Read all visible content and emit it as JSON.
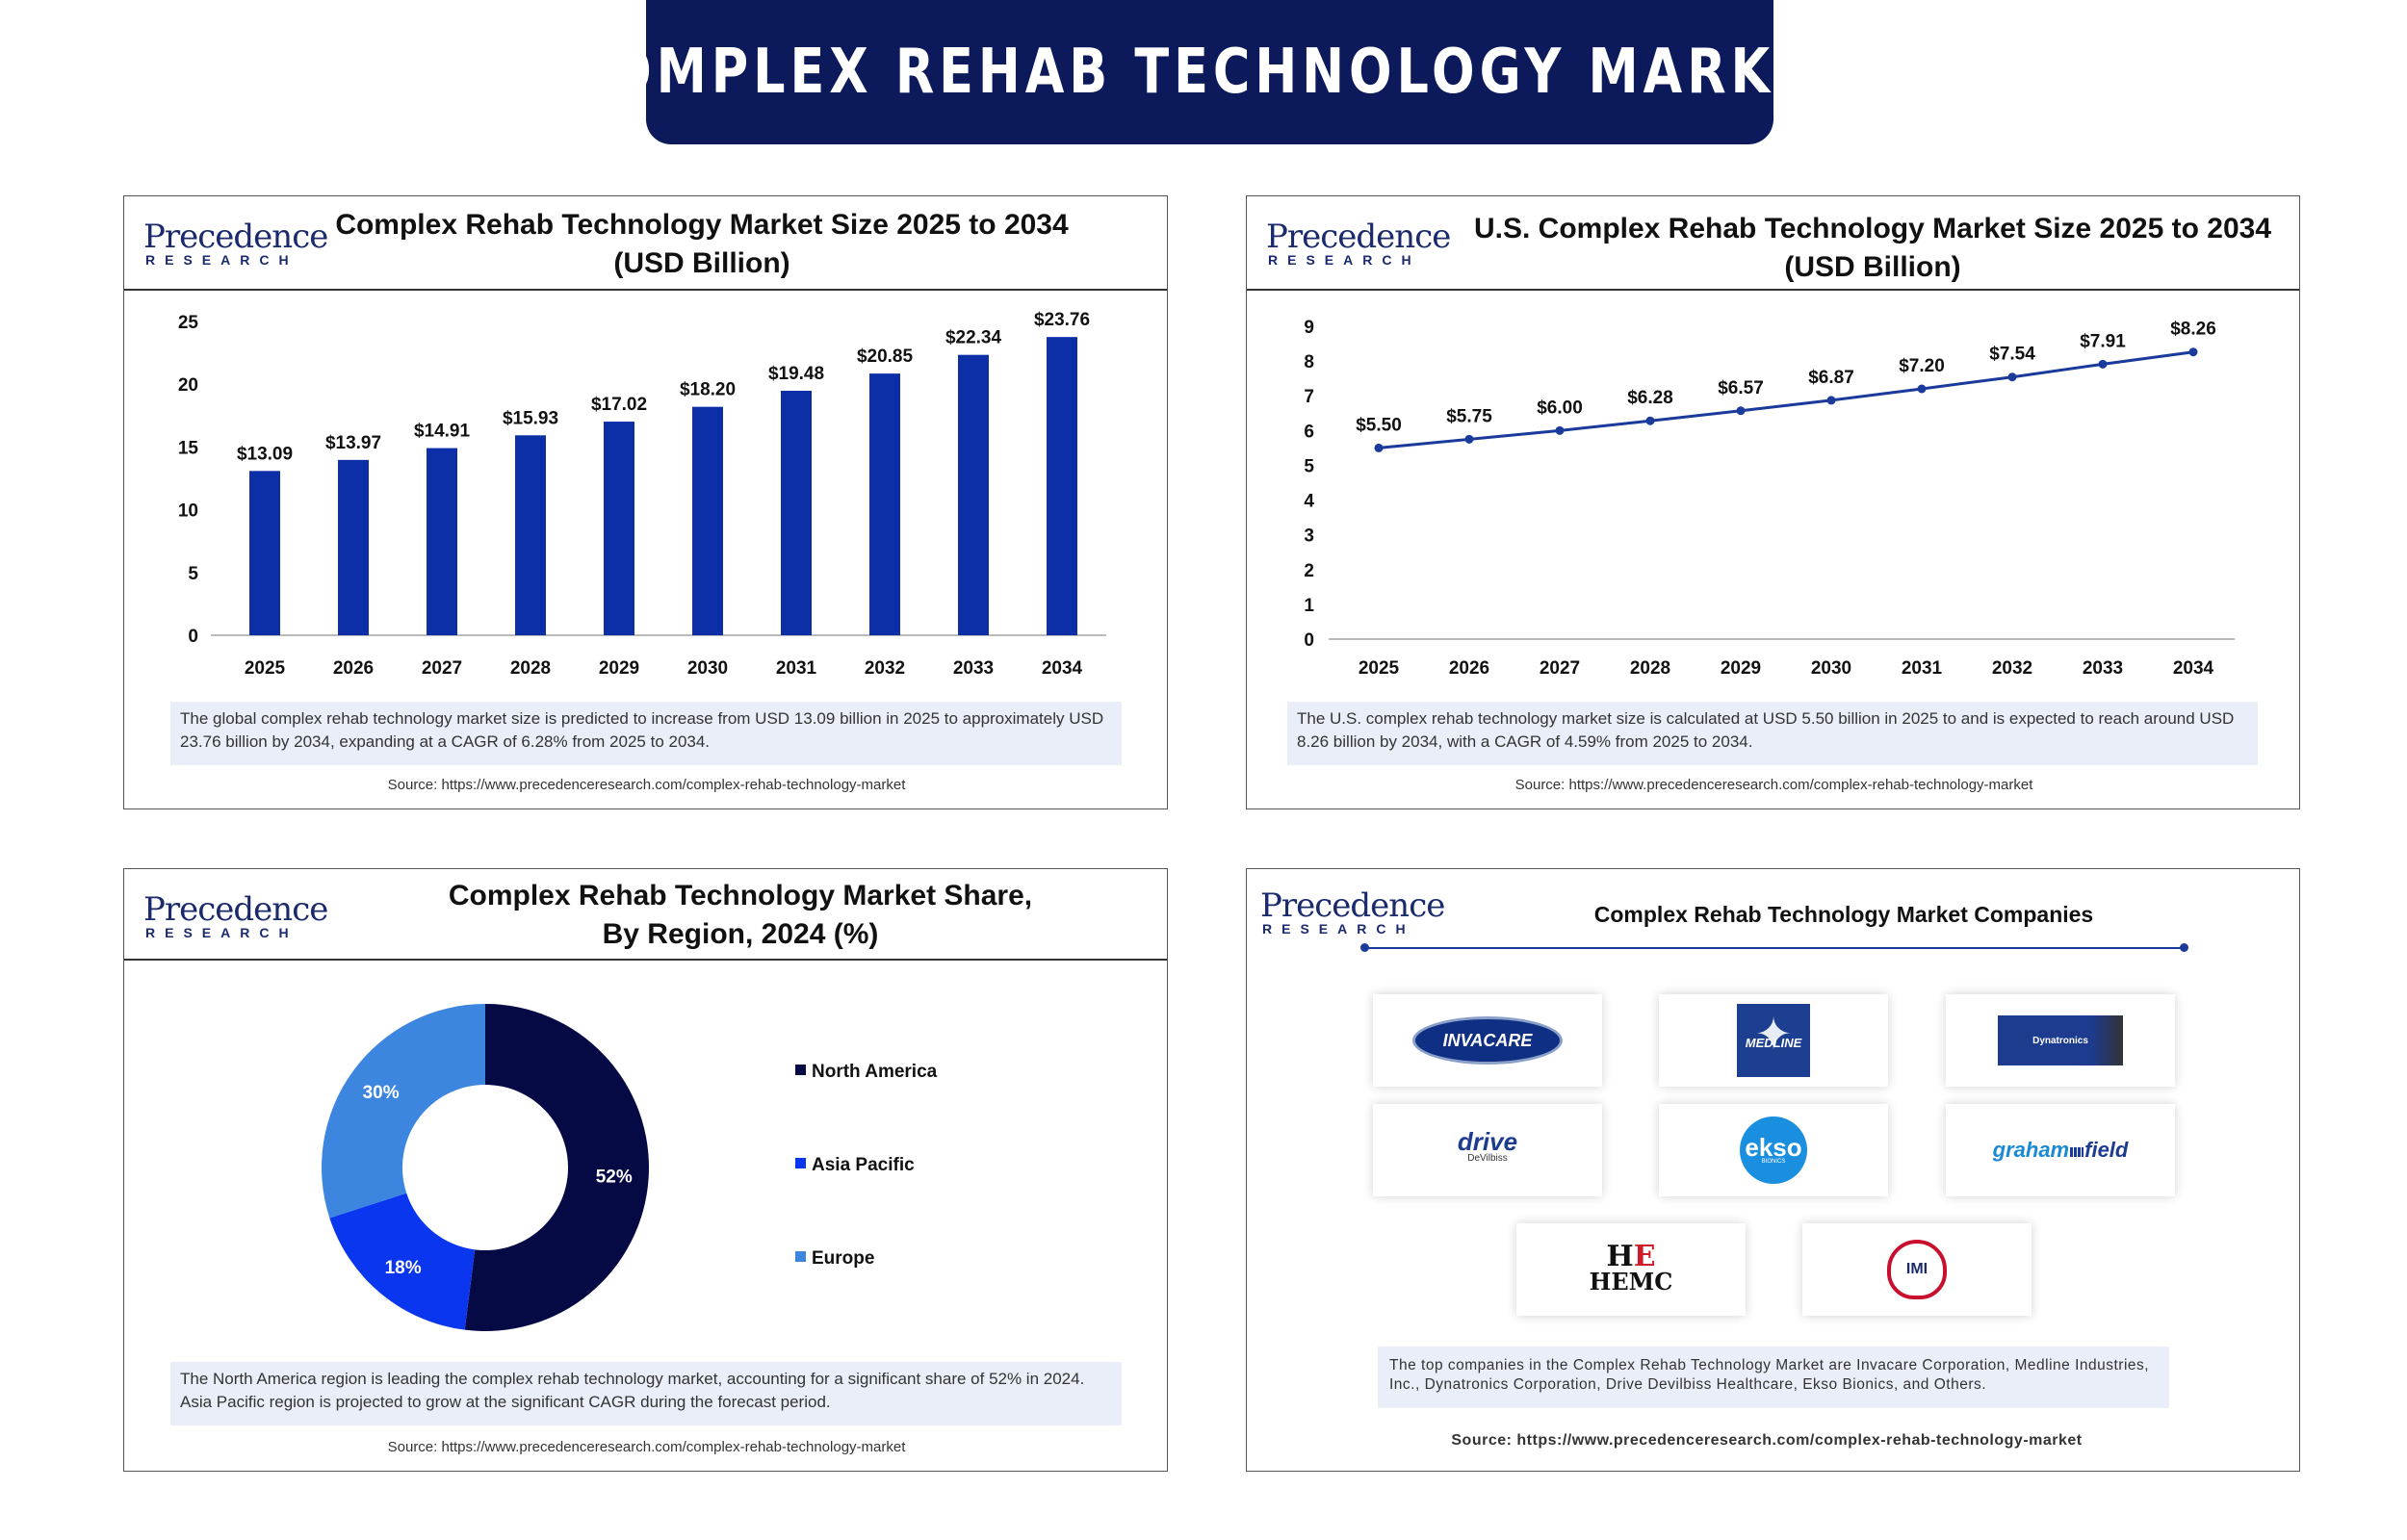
{
  "banner": {
    "title": "COMPLEX REHAB TECHNOLOGY MARKET"
  },
  "logo": {
    "word": "Precedence",
    "sub": "RESEARCH"
  },
  "panels": {
    "market_size": {
      "title_line1": "Complex Rehab Technology Market Size 2025 to 2034",
      "title_line2": "(USD Billion)",
      "info": "The global complex rehab technology market size is predicted to increase from USD 13.09 billion in 2025 to approximately USD 23.76 billion by 2034, expanding at a CAGR of 6.28% from 2025 to 2034.",
      "source": "Source: https://www.precedenceresearch.com/complex-rehab-technology-market"
    },
    "us_market": {
      "title_line1": "U.S. Complex Rehab Technology Market Size 2025 to 2034",
      "title_line2": "(USD Billion)",
      "info": "The U.S. complex rehab technology market size is calculated at USD 5.50 billion in 2025 to and is expected to reach around USD 8.26 billion by 2034, with a CAGR of 4.59% from 2025 to 2034.",
      "source": "Source: https://www.precedenceresearch.com/complex-rehab-technology-market"
    },
    "region_share": {
      "title_line1": "Complex Rehab Technology Market Share,",
      "title_line2": "By Region, 2024 (%)",
      "info": "The North America region is leading the complex rehab technology market, accounting for a significant share of 52% in 2024. Asia Pacific region is projected to grow at the significant CAGR during the forecast period.",
      "source": "Source: https://www.precedenceresearch.com/complex-rehab-technology-market"
    },
    "companies": {
      "title": "Complex Rehab Technology Market Companies",
      "info": "The top companies in the Complex Rehab Technology Market are Invacare Corporation, Medline Industries, Inc., Dynatronics Corporation, Drive Devilbiss Healthcare, Ekso Bionics, and Others.",
      "source": "Source: https://www.precedenceresearch.com/complex-rehab-technology-market",
      "logos": {
        "invacare": "INVACARE",
        "medline": "MEDLINE",
        "dynatronics": "Dynatronics",
        "drive": "drive",
        "drive_sub": "DeVilbiss",
        "ekso": "ekso",
        "ekso_sub": "BIONICS",
        "graham": "graham",
        "graham_field": "field",
        "hemc": "HEMC",
        "imi": "IMI"
      }
    }
  },
  "chart_data": [
    {
      "type": "bar",
      "categories": [
        "2025",
        "2026",
        "2027",
        "2028",
        "2029",
        "2030",
        "2031",
        "2032",
        "2033",
        "2034"
      ],
      "values": [
        13.09,
        13.97,
        14.91,
        15.93,
        17.02,
        18.2,
        19.48,
        20.85,
        22.34,
        23.76
      ],
      "labels": [
        "$13.09",
        "$13.97",
        "$14.91",
        "$15.93",
        "$17.02",
        "$18.20",
        "$19.48",
        "$20.85",
        "$22.34",
        "$23.76"
      ],
      "yticks": [
        0,
        5,
        10,
        15,
        20,
        25
      ],
      "ylim": [
        0,
        25
      ],
      "color": "#0c2fa8"
    },
    {
      "type": "line",
      "categories": [
        "2025",
        "2026",
        "2027",
        "2028",
        "2029",
        "2030",
        "2031",
        "2032",
        "2033",
        "2034"
      ],
      "values": [
        5.5,
        5.75,
        6.0,
        6.28,
        6.57,
        6.87,
        7.2,
        7.54,
        7.91,
        8.26
      ],
      "labels": [
        "$5.50",
        "$5.75",
        "$6.00",
        "$6.28",
        "$6.57",
        "$6.87",
        "$7.20",
        "$7.54",
        "$7.91",
        "$8.26"
      ],
      "yticks": [
        0,
        1,
        2,
        3,
        4,
        5,
        6,
        7,
        8,
        9
      ],
      "ylim": [
        0,
        9
      ],
      "color": "#1a3a9c"
    },
    {
      "type": "pie",
      "slices": [
        {
          "name": "North America",
          "value": 52,
          "label": "52%",
          "color": "#050a45"
        },
        {
          "name": "Asia Pacific",
          "value": 18,
          "label": "18%",
          "color": "#0a36f0"
        },
        {
          "name": "Europe",
          "value": 30,
          "label": "30%",
          "color": "#3d86e0"
        }
      ]
    }
  ]
}
